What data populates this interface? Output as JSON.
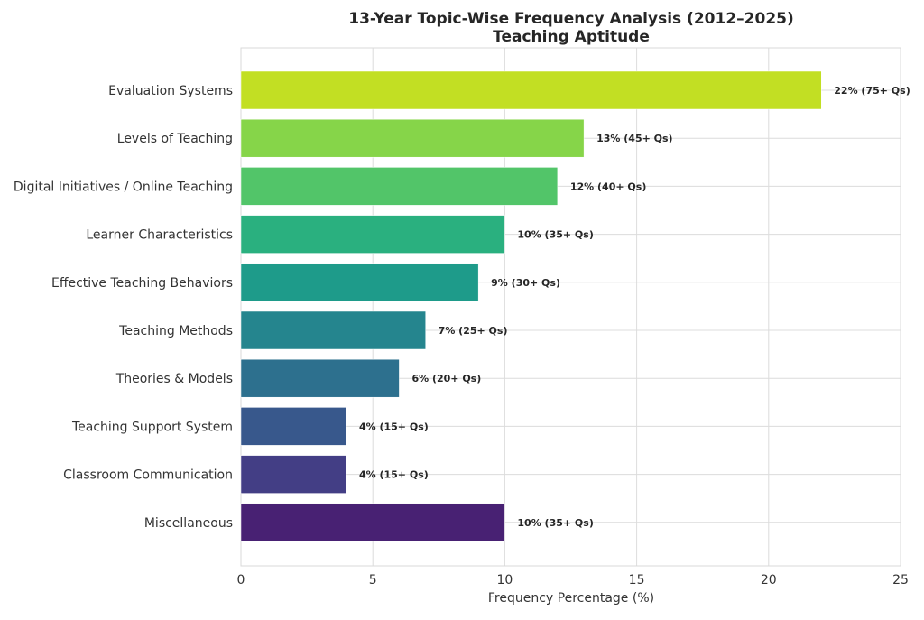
{
  "chart_data": {
    "type": "bar",
    "orientation": "horizontal",
    "title": "13-Year Topic-Wise Frequency Analysis (2012–2025)",
    "subtitle": "Teaching Aptitude",
    "xlabel": "Frequency Percentage (%)",
    "ylabel": "",
    "xlim": [
      0,
      25
    ],
    "xticks": [
      "0",
      "5",
      "10",
      "15",
      "20",
      "25"
    ],
    "grid": true,
    "categories": [
      "Evaluation Systems",
      "Levels of Teaching",
      "Digital Initiatives / Online Teaching",
      "Learner Characteristics",
      "Effective Teaching Behaviors",
      "Teaching Methods",
      "Theories & Models",
      "Teaching Support System",
      "Classroom Communication",
      "Miscellaneous"
    ],
    "values": [
      22,
      13,
      12,
      10,
      9,
      7,
      6,
      4,
      4,
      10
    ],
    "data_labels": [
      "22% (75+ Qs)",
      "13% (45+ Qs)",
      "12% (40+ Qs)",
      "10% (35+ Qs)",
      "9% (30+ Qs)",
      "7% (25+ Qs)",
      "6% (20+ Qs)",
      "4% (15+ Qs)",
      "4% (15+ Qs)",
      "10% (35+ Qs)"
    ],
    "colors": [
      "#c2df23",
      "#86d549",
      "#52c569",
      "#2ab07f",
      "#1e9b8a",
      "#25858e",
      "#2d708e",
      "#38588c",
      "#433e85",
      "#482173"
    ]
  }
}
